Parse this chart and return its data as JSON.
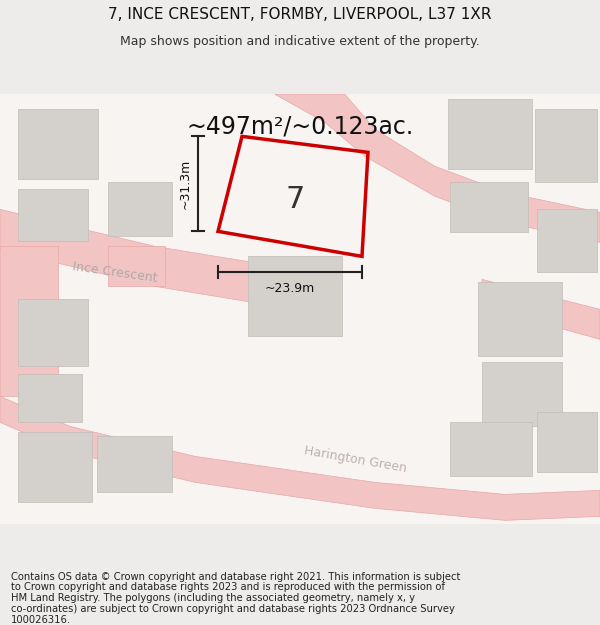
{
  "title": "7, INCE CRESCENT, FORMBY, LIVERPOOL, L37 1XR",
  "subtitle": "Map shows position and indicative extent of the property.",
  "area_text": "~497m²/~0.123ac.",
  "property_number": "7",
  "dim_width": "~23.9m",
  "dim_height": "~31.3m",
  "street_label_1": "Ince Crescent",
  "street_label_2": "Harington Green",
  "footer_lines": [
    "Contains OS data © Crown copyright and database right 2021. This information is subject",
    "to Crown copyright and database rights 2023 and is reproduced with the permission of",
    "HM Land Registry. The polygons (including the associated geometry, namely x, y",
    "co-ordinates) are subject to Crown copyright and database rights 2023 Ordnance Survey",
    "100026316."
  ],
  "fig_bg": "#eeecea",
  "map_bg": "#f7f4f2",
  "road_color": "#f2c4c4",
  "road_edge": "#e8a8a8",
  "building_color": "#d4d0cc",
  "building_edge": "#c0bcb8",
  "property_outline_color": "#cc0000",
  "title_fontsize": 11,
  "subtitle_fontsize": 9,
  "area_fontsize": 18,
  "footer_fontsize": 7.2
}
